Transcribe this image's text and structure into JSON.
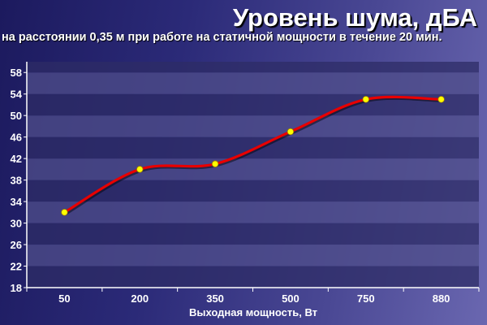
{
  "colors": {
    "line": "#e80000",
    "marker_fill": "#ffff00",
    "band_light": "#4f4d8a",
    "band_dark": "#2d2c66",
    "text": "#ffffff"
  },
  "chart_data": {
    "type": "line",
    "title": "Уровень шума, дБА",
    "subtitle": "на расстоянии 0,35 м при работе на статичной мощности в течение 20 мин.",
    "xlabel": "Выходная мощность, Вт",
    "ylabel": "",
    "categories": [
      "50",
      "200",
      "350",
      "500",
      "750",
      "880"
    ],
    "series": [
      {
        "values": [
          32,
          40,
          41,
          47,
          53,
          53
        ]
      }
    ],
    "ylim": [
      18,
      60
    ],
    "yticks": [
      18,
      22,
      26,
      30,
      34,
      38,
      42,
      46,
      50,
      54,
      58
    ],
    "grid": true,
    "legend": "none"
  }
}
